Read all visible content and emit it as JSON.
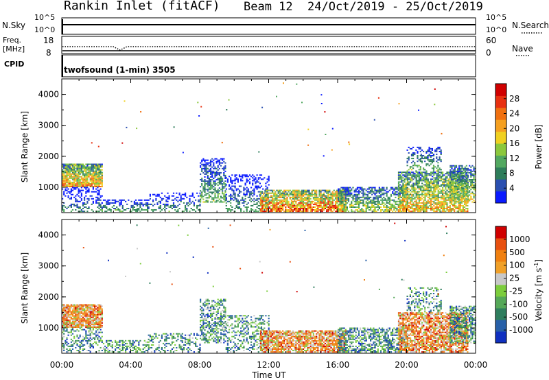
{
  "header": {
    "site": "Rankin Inlet (fitACF)",
    "beam": "Beam 12",
    "dates": "24/Oct/2019 - 25/Oct/2019"
  },
  "small_panels": {
    "nsky_label": "N.Sky",
    "nsky_ticks": [
      "10^5",
      "10^0"
    ],
    "nsearch_label": "N.Search",
    "nsearch_ticks": [
      "10^5",
      "10^0"
    ],
    "freq_label": "Freq.",
    "freq_unit": "[MHz]",
    "freq_ticks": [
      "18",
      "8"
    ],
    "nave_label": "Nave",
    "nave_ticks": [
      "60",
      "0"
    ],
    "cpid_label": "CPID",
    "cpid_value": "twofsound (1-min) 3505"
  },
  "colors": {
    "power": [
      "#0a1aff",
      "#2a4fb0",
      "#2e7d5a",
      "#52a860",
      "#8cc83c",
      "#f0d020",
      "#f5a020",
      "#f07010",
      "#e83010",
      "#d00000"
    ],
    "velocity": [
      "#1030c0",
      "#2860a8",
      "#2f7e5e",
      "#55a858",
      "#7ccd3c",
      "#c8c8c8",
      "#f0a028",
      "#f08010",
      "#e85010",
      "#d00000"
    ]
  },
  "chart_data": [
    {
      "type": "heatmap",
      "title": "Power",
      "ylabel": "Slant Range [km]",
      "xlabel": "",
      "ylim": [
        180,
        4500
      ],
      "yticks": [
        "1000",
        "2000",
        "3000",
        "4000"
      ],
      "xticks": [
        "00:00",
        "04:00",
        "08:00",
        "12:00",
        "16:00",
        "20:00",
        "00:00"
      ],
      "colorbar_label": "Power [dB]",
      "colorbar_ticks": [
        "28",
        "24",
        "20",
        "16",
        "12",
        "8",
        "4"
      ],
      "colorbar_range": [
        0,
        32
      ]
    },
    {
      "type": "heatmap",
      "title": "Velocity",
      "ylabel": "Slant Range [km]",
      "xlabel": "Time UT",
      "ylim": [
        180,
        4500
      ],
      "yticks": [
        "1000",
        "2000",
        "3000",
        "4000"
      ],
      "xticks": [
        "00:00",
        "04:00",
        "08:00",
        "12:00",
        "16:00",
        "20:00",
        "00:00"
      ],
      "colorbar_label": "Velocity [m s^-1]",
      "colorbar_ticks": [
        "1000",
        "500",
        "100",
        "25",
        "-25",
        "-100",
        "-500",
        "-1000"
      ]
    }
  ]
}
